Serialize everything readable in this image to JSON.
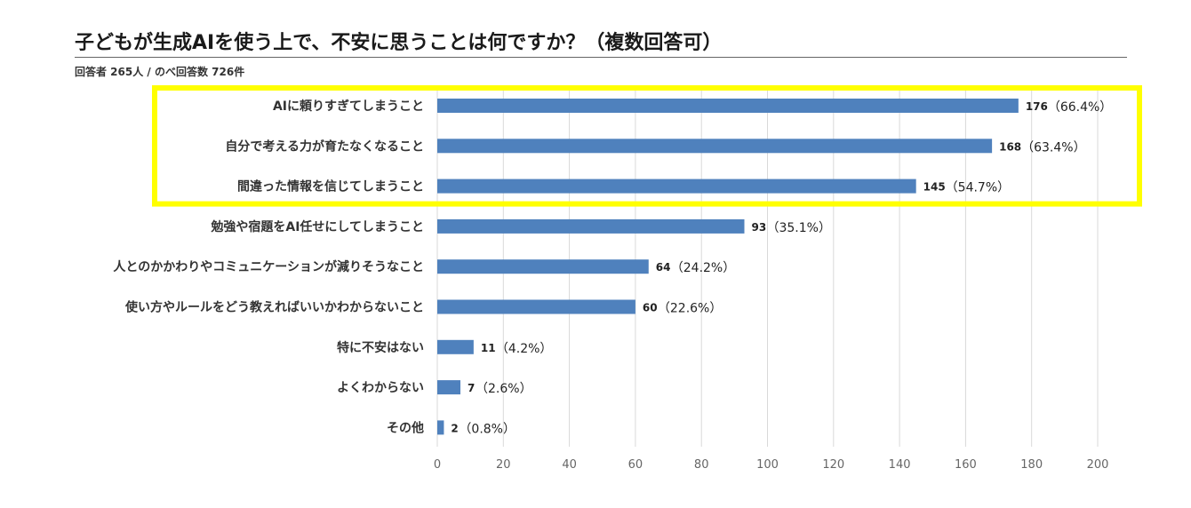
{
  "title": "子どもが生成AIを使う上で、不安に思うことは何ですか？（複数回答可）",
  "subtitle": "回答者 265人 / のべ回答数 726件",
  "colors": {
    "bar": "#4f81bd",
    "highlight": "#ffff00",
    "grid": "#d9d9d9"
  },
  "chart_data": {
    "type": "bar",
    "orientation": "horizontal",
    "categories": [
      "AIに頼りすぎてしまうこと",
      "自分で考える力が育たなくなること",
      "間違った情報を信じてしまうこと",
      "勉強や宿題をAI任せにしてしまうこと",
      "人とのかかわりやコミュニケーションが減りそうなこと",
      "使い方やルールをどう教えればいいかわからないこと",
      "特に不安はない",
      "よくわからない",
      "その他"
    ],
    "values": [
      176,
      168,
      145,
      93,
      64,
      60,
      11,
      7,
      2
    ],
    "percent_labels": [
      "（66.4%）",
      "（63.4%）",
      "（54.7%）",
      "（35.1%）",
      "（24.2%）",
      "（22.6%）",
      "（4.2%）",
      "（2.6%）",
      "（0.8%）"
    ],
    "xlim": [
      0,
      200
    ],
    "xticks": [
      0,
      20,
      40,
      60,
      80,
      100,
      120,
      140,
      160,
      180,
      200
    ],
    "grid": "vertical",
    "highlighted_categories": [
      0,
      1,
      2
    ],
    "legend": "none"
  }
}
